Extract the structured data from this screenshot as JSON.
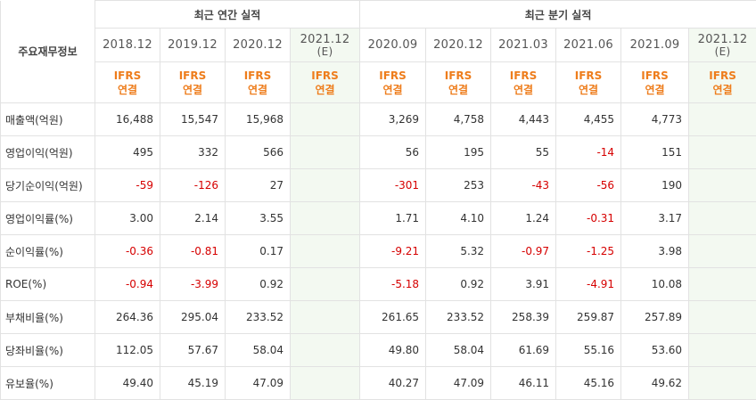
{
  "header": {
    "row_label": "주요재무정보",
    "annual_title": "최근 연간 실적",
    "quarterly_title": "최근 분기 실적"
  },
  "periods": {
    "annual": [
      {
        "label": "2018.12",
        "estimate": ""
      },
      {
        "label": "2019.12",
        "estimate": ""
      },
      {
        "label": "2020.12",
        "estimate": ""
      },
      {
        "label": "2021.12",
        "estimate": "(E)"
      }
    ],
    "quarterly": [
      {
        "label": "2020.09",
        "estimate": ""
      },
      {
        "label": "2020.12",
        "estimate": ""
      },
      {
        "label": "2021.03",
        "estimate": ""
      },
      {
        "label": "2021.06",
        "estimate": ""
      },
      {
        "label": "2021.09",
        "estimate": ""
      },
      {
        "label": "2021.12",
        "estimate": "(E)"
      }
    ]
  },
  "ifrs_label": {
    "line1": "IFRS",
    "line2": "연결"
  },
  "rows": [
    {
      "label": "매출액(억원)",
      "annual": [
        "16,488",
        "15,547",
        "15,968",
        ""
      ],
      "quarterly": [
        "3,269",
        "4,758",
        "4,443",
        "4,455",
        "4,773",
        ""
      ]
    },
    {
      "label": "영업이익(억원)",
      "annual": [
        "495",
        "332",
        "566",
        ""
      ],
      "quarterly": [
        "56",
        "195",
        "55",
        "-14",
        "151",
        ""
      ]
    },
    {
      "label": "당기순이익(억원)",
      "annual": [
        "-59",
        "-126",
        "27",
        ""
      ],
      "quarterly": [
        "-301",
        "253",
        "-43",
        "-56",
        "190",
        ""
      ]
    },
    {
      "label": "영업이익률(%)",
      "annual": [
        "3.00",
        "2.14",
        "3.55",
        ""
      ],
      "quarterly": [
        "1.71",
        "4.10",
        "1.24",
        "-0.31",
        "3.17",
        ""
      ]
    },
    {
      "label": "순이익률(%)",
      "annual": [
        "-0.36",
        "-0.81",
        "0.17",
        ""
      ],
      "quarterly": [
        "-9.21",
        "5.32",
        "-0.97",
        "-1.25",
        "3.98",
        ""
      ]
    },
    {
      "label": "ROE(%)",
      "annual": [
        "-0.94",
        "-3.99",
        "0.92",
        ""
      ],
      "quarterly": [
        "-5.18",
        "0.92",
        "3.91",
        "-4.91",
        "10.08",
        ""
      ]
    },
    {
      "label": "부채비율(%)",
      "annual": [
        "264.36",
        "295.04",
        "233.52",
        ""
      ],
      "quarterly": [
        "261.65",
        "233.52",
        "258.39",
        "259.87",
        "257.89",
        ""
      ]
    },
    {
      "label": "당좌비율(%)",
      "annual": [
        "112.05",
        "57.67",
        "58.04",
        ""
      ],
      "quarterly": [
        "49.80",
        "58.04",
        "61.69",
        "55.16",
        "53.60",
        ""
      ]
    },
    {
      "label": "유보율(%)",
      "annual": [
        "49.40",
        "45.19",
        "47.09",
        ""
      ],
      "quarterly": [
        "40.27",
        "47.09",
        "46.11",
        "45.16",
        "49.62",
        ""
      ]
    }
  ],
  "colors": {
    "negative": "#d60000",
    "ifrs": "#ee7d1c",
    "estimate_bg": "#f3f9f1"
  }
}
